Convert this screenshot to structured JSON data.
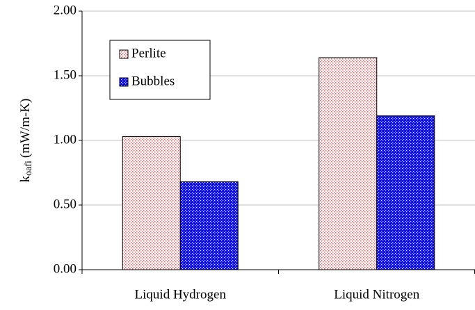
{
  "chart_data": {
    "type": "bar",
    "ylabel": "k",
    "ylabel_subscript": "oafi",
    "ylabel_rest": "(mW/m-K)",
    "categories": [
      "Liquid Hydrogen",
      "Liquid Nitrogen"
    ],
    "series": [
      {
        "name": "Perlite",
        "color": "#e06060",
        "values": [
          1.03,
          1.64
        ]
      },
      {
        "name": "Bubbles",
        "color": "#0000ff",
        "values": [
          0.68,
          1.19
        ]
      }
    ],
    "ylim": [
      0,
      2
    ],
    "yticks": [
      {
        "value": 0,
        "label": "0.00"
      },
      {
        "value": 0.5,
        "label": "0.50"
      },
      {
        "value": 1,
        "label": "1.00"
      },
      {
        "value": 1.5,
        "label": "1.50"
      },
      {
        "value": 2,
        "label": "2.00"
      }
    ],
    "grid": true,
    "legend": "upper left"
  }
}
